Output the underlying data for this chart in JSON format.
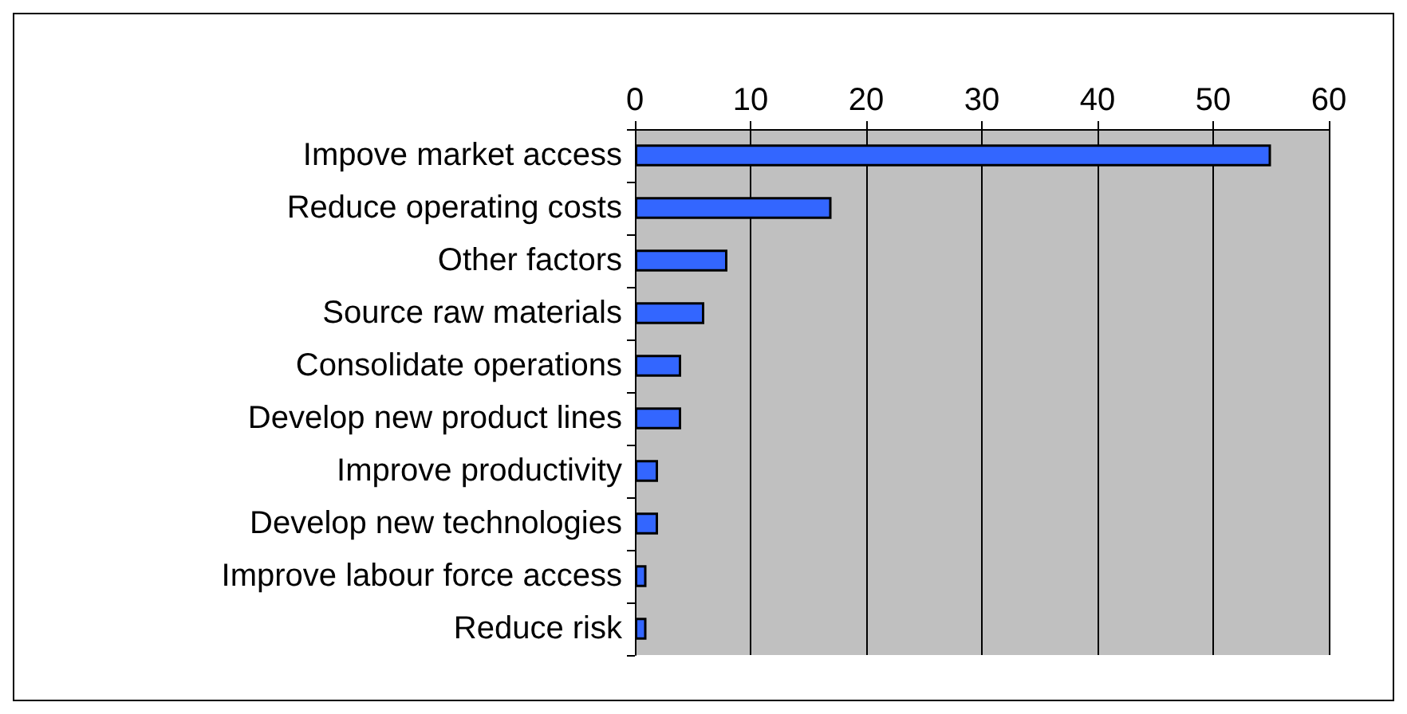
{
  "chart_data": {
    "type": "bar",
    "orientation": "horizontal",
    "categories": [
      "Impove market access",
      "Reduce operating costs",
      "Other factors",
      "Source raw materials",
      "Consolidate operations",
      "Develop new product lines",
      "Improve productivity",
      "Develop new technologies",
      "Improve labour force access",
      "Reduce risk"
    ],
    "values": [
      55,
      17,
      8,
      6,
      4,
      4,
      2,
      2,
      1,
      1
    ],
    "color": "#3366ff",
    "xlim": [
      0,
      60
    ],
    "xticks": [
      0,
      10,
      20,
      30,
      40,
      50,
      60
    ],
    "grid": "x"
  }
}
